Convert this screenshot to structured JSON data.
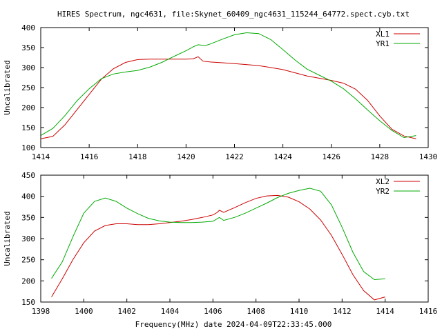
{
  "title": "HIRES Spectrum, ngc4631, file:Skynet_60409_ngc4631_115244_64772.spect.cyb.txt",
  "xlabel": "Frequency(MHz) date 2024-04-09T22:33:45.000",
  "colors": {
    "red": "#cc0000",
    "green": "#00aa00"
  },
  "chart_data": [
    {
      "type": "line",
      "ylabel": "Uncalibrated",
      "xlim": [
        1414,
        1430
      ],
      "ylim": [
        100,
        400
      ],
      "xticks": [
        1414,
        1416,
        1418,
        1420,
        1422,
        1424,
        1426,
        1428,
        1430
      ],
      "yticks": [
        100,
        150,
        200,
        250,
        300,
        350,
        400
      ],
      "legend": "top-right",
      "series": [
        {
          "name": "XL1",
          "color": "#cc0000",
          "x": [
            1414.0,
            1414.5,
            1415.0,
            1415.5,
            1416.0,
            1416.5,
            1417.0,
            1417.5,
            1418.0,
            1418.5,
            1419.0,
            1419.5,
            1420.0,
            1420.3,
            1420.5,
            1420.7,
            1421.0,
            1421.5,
            1422.0,
            1423.0,
            1424.0,
            1425.0,
            1426.0,
            1426.5,
            1427.0,
            1427.5,
            1428.0,
            1428.5,
            1429.0,
            1429.5
          ],
          "y": [
            122,
            128,
            157,
            195,
            233,
            271,
            297,
            313,
            320,
            321,
            321,
            321,
            321,
            322,
            327,
            316,
            314,
            312,
            310,
            305,
            295,
            279,
            268,
            261,
            246,
            218,
            179,
            146,
            129,
            122
          ]
        },
        {
          "name": "YR1",
          "color": "#00aa00",
          "x": [
            1414.0,
            1414.5,
            1415.0,
            1415.5,
            1416.0,
            1416.5,
            1417.0,
            1417.5,
            1418.0,
            1418.5,
            1419.0,
            1419.5,
            1420.0,
            1420.3,
            1420.5,
            1420.8,
            1421.0,
            1421.5,
            1422.0,
            1422.5,
            1423.0,
            1423.5,
            1424.0,
            1424.5,
            1425.0,
            1425.5,
            1426.0,
            1426.5,
            1427.0,
            1427.5,
            1428.0,
            1428.5,
            1429.0,
            1429.5
          ],
          "y": [
            130,
            148,
            180,
            217,
            247,
            272,
            284,
            289,
            293,
            301,
            313,
            328,
            342,
            352,
            357,
            355,
            359,
            371,
            382,
            387,
            385,
            370,
            345,
            319,
            296,
            281,
            266,
            247,
            222,
            194,
            167,
            143,
            125,
            130
          ]
        }
      ]
    },
    {
      "type": "line",
      "ylabel": "Uncalibrated",
      "xlim": [
        1398,
        1416
      ],
      "ylim": [
        150,
        450
      ],
      "xticks": [
        1398,
        1400,
        1402,
        1404,
        1406,
        1408,
        1410,
        1412,
        1414,
        1416
      ],
      "yticks": [
        150,
        200,
        250,
        300,
        350,
        400,
        450
      ],
      "legend": "top-right",
      "series": [
        {
          "name": "XL2",
          "color": "#cc0000",
          "x": [
            1398.5,
            1399.0,
            1399.5,
            1400.0,
            1400.5,
            1401.0,
            1401.5,
            1402.0,
            1402.5,
            1403.0,
            1403.5,
            1404.0,
            1404.5,
            1405.0,
            1405.5,
            1406.0,
            1406.2,
            1406.3,
            1406.5,
            1407.0,
            1407.5,
            1408.0,
            1408.5,
            1409.0,
            1409.5,
            1410.0,
            1410.5,
            1411.0,
            1411.5,
            1412.0,
            1412.5,
            1413.0,
            1413.5,
            1414.0
          ],
          "y": [
            162,
            205,
            251,
            290,
            318,
            331,
            335,
            335,
            333,
            333,
            335,
            338,
            341,
            345,
            350,
            356,
            362,
            367,
            362,
            373,
            385,
            395,
            401,
            402,
            398,
            387,
            370,
            344,
            308,
            263,
            215,
            177,
            155,
            162
          ]
        },
        {
          "name": "YR2",
          "color": "#00aa00",
          "x": [
            1398.5,
            1399.0,
            1399.5,
            1400.0,
            1400.5,
            1401.0,
            1401.5,
            1402.0,
            1402.5,
            1403.0,
            1403.5,
            1404.0,
            1404.5,
            1405.0,
            1405.5,
            1406.0,
            1406.3,
            1406.5,
            1407.0,
            1407.5,
            1408.0,
            1408.5,
            1409.0,
            1409.5,
            1410.0,
            1410.5,
            1411.0,
            1411.5,
            1412.0,
            1412.5,
            1413.0,
            1413.5,
            1414.0
          ],
          "y": [
            206,
            245,
            305,
            360,
            388,
            396,
            388,
            372,
            359,
            348,
            342,
            339,
            338,
            338,
            339,
            341,
            350,
            343,
            350,
            360,
            372,
            384,
            397,
            407,
            414,
            419,
            412,
            380,
            327,
            268,
            222,
            203,
            205
          ]
        }
      ]
    }
  ]
}
